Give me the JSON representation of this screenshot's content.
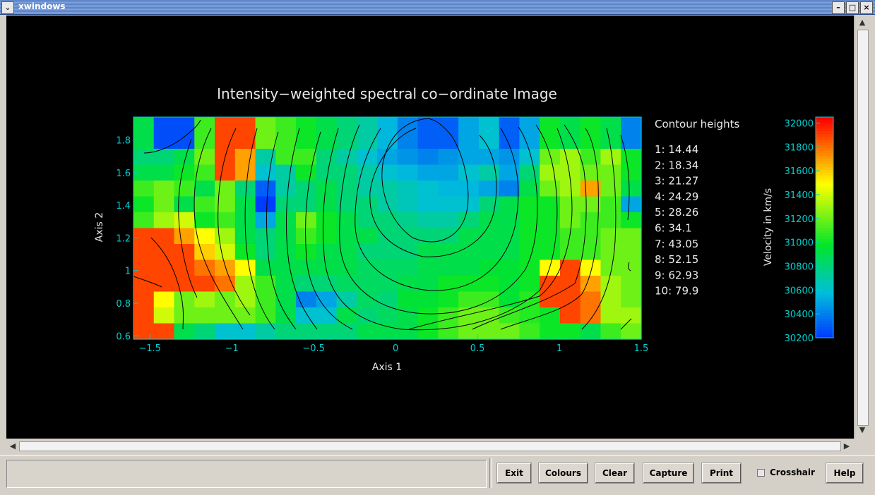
{
  "window": {
    "title": "xwindows",
    "menu_icon": "chevron-down-icon",
    "controls": [
      "minimize-icon",
      "maximize-icon",
      "close-icon"
    ]
  },
  "chart_data": {
    "type": "heatmap",
    "title": "Intensity−weighted spectral co−ordinate Image",
    "xlabel": "Axis 1",
    "ylabel": "Axis 2",
    "xlim": [
      -1.6,
      1.5
    ],
    "ylim": [
      0.58,
      1.94
    ],
    "x_ticks": [
      "−1.5",
      "−1",
      "−0.5",
      "0",
      "0.5",
      "1",
      "1.5"
    ],
    "x_tick_values": [
      -1.5,
      -1,
      -0.5,
      0,
      0.5,
      1,
      1.5
    ],
    "y_ticks": [
      "0.6",
      "0.8",
      "1",
      "1.2",
      "1.4",
      "1.6",
      "1.8"
    ],
    "y_tick_values": [
      0.6,
      0.8,
      1.0,
      1.2,
      1.4,
      1.6,
      1.8
    ],
    "grid": false,
    "colorbar": {
      "label": "Velocity in km/s",
      "range": [
        30200,
        32050
      ],
      "ticks": [
        "30200",
        "30400",
        "30600",
        "30800",
        "31000",
        "31200",
        "31400",
        "31600",
        "31800",
        "32000"
      ],
      "tick_values": [
        30200,
        30400,
        30600,
        30800,
        31000,
        31200,
        31400,
        31600,
        31800,
        32000
      ]
    },
    "contour_legend_title": "Contour heights",
    "contour_levels": [
      "1: 14.44",
      "2: 18.34",
      "3: 21.27",
      "4: 24.29",
      "5: 28.26",
      "6: 34.1",
      "7: 43.05",
      "8: 52.15",
      "9: 62.93",
      "10: 79.9"
    ],
    "grid_x": [
      -1.5,
      -1.375,
      -1.25,
      -1.125,
      -1.0,
      -0.875,
      -0.75,
      -0.625,
      -0.5,
      -0.375,
      -0.25,
      -0.125,
      0.0,
      0.125,
      0.25,
      0.375,
      0.5,
      0.625,
      0.75,
      0.875,
      1.0,
      1.125,
      1.25,
      1.375,
      1.5
    ],
    "grid_y": [
      1.9,
      1.8,
      1.7,
      1.6,
      1.5,
      1.4,
      1.3,
      1.2,
      1.1,
      1.0,
      0.9,
      0.8,
      0.7,
      0.6
    ],
    "values": [
      [
        30900,
        30250,
        30250,
        31100,
        31900,
        31900,
        31200,
        31100,
        31000,
        30900,
        30800,
        30700,
        30550,
        30400,
        30300,
        30300,
        30500,
        30600,
        30300,
        30500,
        31000,
        30900,
        31000,
        30900,
        30400
      ],
      [
        30900,
        30250,
        30250,
        31100,
        31900,
        31900,
        31200,
        31100,
        31000,
        30900,
        30800,
        30700,
        30550,
        30400,
        30300,
        30300,
        30500,
        30600,
        30300,
        30500,
        31000,
        30900,
        31000,
        30900,
        30400
      ],
      [
        30800,
        30800,
        30900,
        31200,
        31900,
        31700,
        30700,
        31100,
        31100,
        30800,
        30700,
        30600,
        30500,
        30450,
        30400,
        30450,
        30500,
        30500,
        30450,
        30600,
        31200,
        31300,
        31100,
        31300,
        31000
      ],
      [
        30900,
        30900,
        31000,
        31100,
        31900,
        31700,
        30600,
        30700,
        31000,
        30800,
        30800,
        30700,
        30600,
        30550,
        30500,
        30500,
        30600,
        30700,
        30500,
        30800,
        31300,
        31300,
        31200,
        31200,
        31000
      ],
      [
        31100,
        31200,
        31100,
        30900,
        31200,
        30800,
        30300,
        30700,
        30800,
        30900,
        30800,
        30700,
        30700,
        30650,
        30600,
        30550,
        30550,
        30500,
        30400,
        30900,
        31200,
        31300,
        31700,
        31200,
        30900
      ],
      [
        31000,
        31200,
        30900,
        31100,
        31200,
        30900,
        30200,
        30800,
        30800,
        30900,
        30800,
        30800,
        30700,
        30650,
        30600,
        30600,
        30600,
        30800,
        30900,
        31000,
        31000,
        31200,
        31200,
        31100,
        30500
      ],
      [
        31100,
        31300,
        31400,
        31000,
        31100,
        30900,
        30500,
        30900,
        31200,
        31000,
        30900,
        30800,
        30800,
        30750,
        30700,
        30700,
        30800,
        30900,
        30900,
        31000,
        31000,
        31200,
        31100,
        31100,
        31000
      ],
      [
        31900,
        31900,
        31700,
        31500,
        31300,
        30900,
        30800,
        30900,
        31100,
        31000,
        30900,
        30900,
        30800,
        30800,
        30800,
        30800,
        30900,
        30900,
        30900,
        31000,
        31000,
        31100,
        31100,
        31200,
        31200
      ],
      [
        31900,
        31900,
        31900,
        31600,
        31400,
        31000,
        30800,
        30900,
        31000,
        30900,
        30900,
        30800,
        30800,
        30800,
        30900,
        30900,
        30900,
        30900,
        30900,
        31000,
        31000,
        31100,
        31100,
        31200,
        31200
      ],
      [
        31900,
        31900,
        31900,
        31800,
        31700,
        31500,
        30900,
        30900,
        30900,
        30900,
        30900,
        30850,
        30850,
        30850,
        30900,
        30900,
        30900,
        30950,
        30950,
        31000,
        31500,
        31900,
        31500,
        31200,
        31200
      ],
      [
        31900,
        31900,
        31900,
        31900,
        31800,
        31300,
        31100,
        30900,
        30800,
        30800,
        30850,
        30850,
        30850,
        30900,
        30900,
        31000,
        31000,
        31000,
        30950,
        31000,
        31900,
        31900,
        31700,
        31300,
        31200
      ],
      [
        31900,
        31500,
        31200,
        31300,
        31200,
        31300,
        31100,
        30900,
        30400,
        30500,
        30700,
        30850,
        30800,
        30950,
        30950,
        31000,
        31100,
        31100,
        30950,
        31050,
        31900,
        31900,
        31800,
        31300,
        31200
      ],
      [
        31900,
        31400,
        31200,
        31200,
        31200,
        31200,
        31100,
        30900,
        30600,
        30600,
        30900,
        30800,
        30850,
        30900,
        31000,
        31100,
        31200,
        31200,
        31100,
        31050,
        31000,
        31900,
        31800,
        31300,
        31300
      ],
      [
        31900,
        31900,
        30900,
        30800,
        30600,
        30600,
        30700,
        30800,
        30800,
        30800,
        30800,
        30900,
        30900,
        30900,
        31000,
        31100,
        31200,
        31200,
        31200,
        31100,
        31000,
        31000,
        30900,
        31100,
        31200
      ]
    ]
  },
  "controls": {
    "status_text": "",
    "buttons": {
      "exit": "Exit",
      "colours": "Colours",
      "clear": "Clear",
      "capture": "Capture",
      "print": "Print",
      "help": "Help"
    },
    "crosshair_label": "Crosshair",
    "crosshair_checked": false
  }
}
